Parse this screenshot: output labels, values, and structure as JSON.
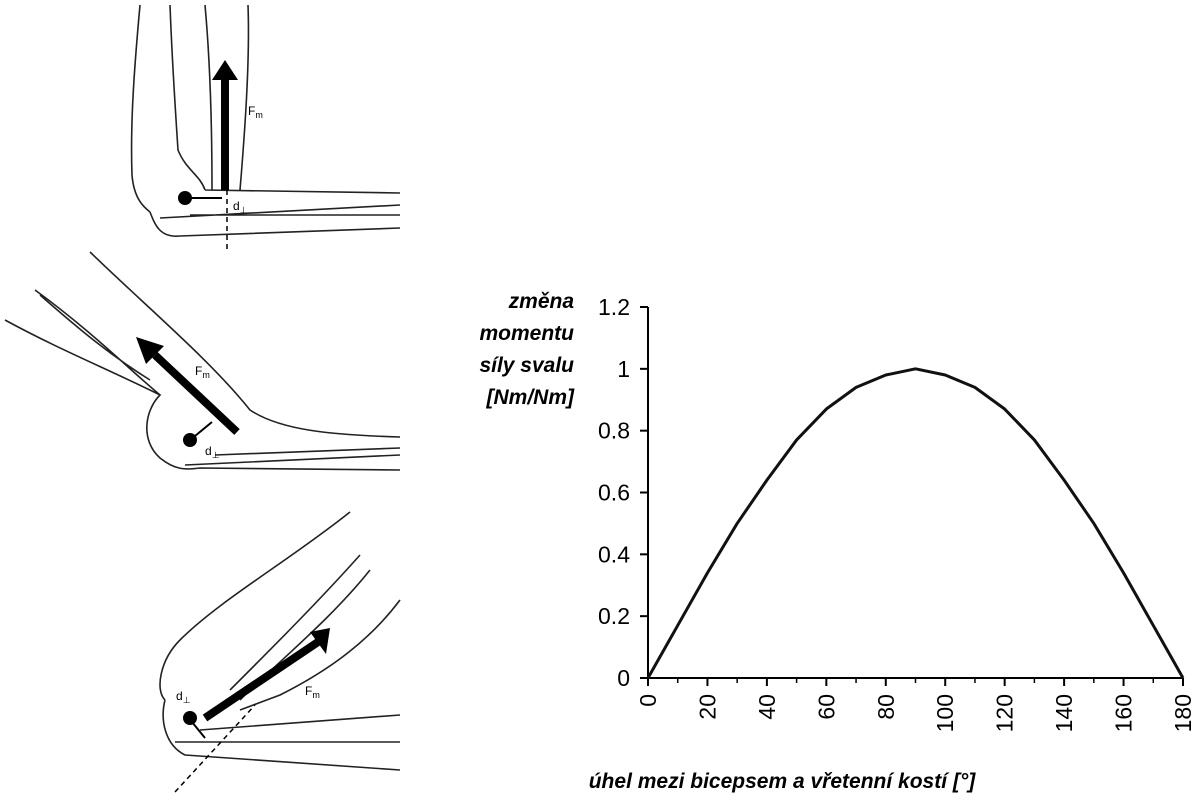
{
  "chart_data": {
    "type": "line",
    "ylabel": [
      "změna",
      "momentu",
      "síly svalu",
      "[Nm/Nm]"
    ],
    "xlabel": "úhel mezi bicepsem a vřetenní kostí [°]",
    "x": [
      0,
      10,
      20,
      30,
      40,
      50,
      60,
      70,
      80,
      90,
      100,
      110,
      120,
      130,
      140,
      150,
      160,
      170,
      180
    ],
    "values": [
      0,
      0.17,
      0.34,
      0.5,
      0.64,
      0.77,
      0.87,
      0.94,
      0.98,
      1,
      0.98,
      0.94,
      0.87,
      0.77,
      0.64,
      0.5,
      0.34,
      0.17,
      0
    ],
    "color": "#111111",
    "xlim": [
      0,
      180
    ],
    "xticks": [
      0,
      20,
      40,
      60,
      80,
      100,
      120,
      140,
      160,
      180
    ],
    "xminorticks": [
      10,
      30,
      50,
      70,
      90,
      110,
      130,
      150,
      170
    ],
    "ylim": [
      0,
      1.2
    ],
    "yticks": [
      0,
      0.2,
      0.4,
      0.6,
      0.8,
      1,
      1.2
    ],
    "grid": false
  },
  "illustrations": [
    {
      "force": {
        "main": "F",
        "sub": "m"
      },
      "distance": {
        "main": "d",
        "sub": "⊥"
      }
    },
    {
      "force": {
        "main": "F",
        "sub": "m"
      },
      "distance": {
        "main": "d",
        "sub": "⊥"
      }
    },
    {
      "force": {
        "main": "F",
        "sub": "m"
      },
      "distance": {
        "main": "d",
        "sub": "⊥"
      }
    }
  ]
}
